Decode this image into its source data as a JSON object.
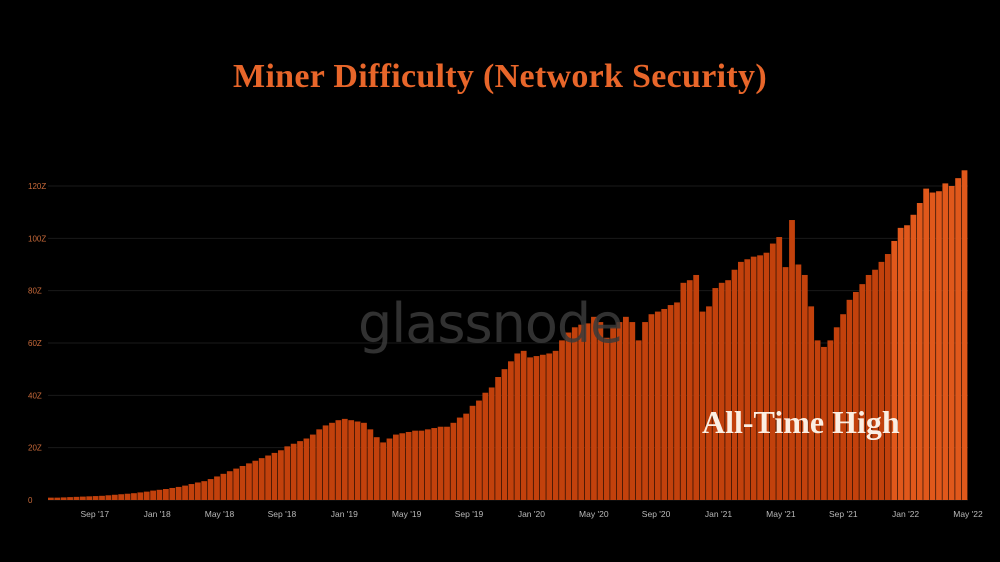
{
  "colors": {
    "bar": "#c2410c",
    "bar_highlight": "#e0581b",
    "title": "#e8662a",
    "grid": "#1a1a1a"
  },
  "watermark": "glassnode",
  "annotation": "All-Time High",
  "chart_data": {
    "type": "bar",
    "title": "Miner Difficulty (Network Security)",
    "xlabel": "",
    "ylabel": "",
    "ylim": [
      0,
      120
    ],
    "yticks": [
      {
        "value": 0,
        "label": "0"
      },
      {
        "value": 20,
        "label": "20Z"
      },
      {
        "value": 40,
        "label": "40Z"
      },
      {
        "value": 60,
        "label": "60Z"
      },
      {
        "value": 80,
        "label": "80Z"
      },
      {
        "value": 100,
        "label": "100Z"
      },
      {
        "value": 120,
        "label": "120Z"
      }
    ],
    "x_start": "2017-06",
    "x_end": "2022-05",
    "xticks": [
      {
        "date": "2017-09",
        "label": "Sep '17"
      },
      {
        "date": "2018-01",
        "label": "Jan '18"
      },
      {
        "date": "2018-05",
        "label": "May '18"
      },
      {
        "date": "2018-09",
        "label": "Sep '18"
      },
      {
        "date": "2019-01",
        "label": "Jan '19"
      },
      {
        "date": "2019-05",
        "label": "May '19"
      },
      {
        "date": "2019-09",
        "label": "Sep '19"
      },
      {
        "date": "2020-01",
        "label": "Jan '20"
      },
      {
        "date": "2020-05",
        "label": "May '20"
      },
      {
        "date": "2020-09",
        "label": "Sep '20"
      },
      {
        "date": "2021-01",
        "label": "Jan '21"
      },
      {
        "date": "2021-05",
        "label": "May '21"
      },
      {
        "date": "2021-09",
        "label": "Sep '21"
      },
      {
        "date": "2022-01",
        "label": "Jan '22"
      },
      {
        "date": "2022-05",
        "label": "May '22"
      }
    ],
    "values": [
      0.9,
      0.9,
      1.0,
      1.1,
      1.2,
      1.3,
      1.4,
      1.5,
      1.6,
      1.8,
      2.0,
      2.2,
      2.4,
      2.6,
      2.9,
      3.2,
      3.6,
      3.9,
      4.2,
      4.6,
      5.0,
      5.5,
      6.1,
      6.7,
      7.2,
      8.0,
      9.0,
      10.0,
      11.0,
      12.0,
      13.0,
      14.0,
      15.0,
      16.0,
      17.0,
      18.0,
      19.0,
      20.5,
      21.5,
      22.5,
      23.5,
      25.0,
      27.0,
      28.5,
      29.5,
      30.5,
      31.0,
      30.5,
      30.0,
      29.5,
      27.0,
      24.0,
      22.0,
      23.5,
      25.0,
      25.5,
      26.0,
      26.5,
      26.5,
      27.0,
      27.5,
      28.0,
      28.0,
      29.5,
      31.5,
      33.0,
      36.0,
      38.0,
      41.0,
      43.0,
      47.0,
      50.0,
      53.0,
      56.0,
      57.0,
      54.5,
      55.0,
      55.5,
      56.0,
      57.0,
      61.0,
      64.0,
      66.0,
      67.0,
      67.5,
      70.0,
      68.0,
      62.0,
      66.0,
      68.0,
      70.0,
      68.0,
      61.0,
      68.0,
      71.0,
      72.0,
      73.0,
      74.5,
      75.5,
      83.0,
      84.0,
      86.0,
      72.0,
      74.0,
      81.0,
      83.0,
      84.0,
      88.0,
      91.0,
      92.0,
      93.0,
      93.5,
      94.5,
      98.0,
      100.5,
      89.0,
      107.0,
      90.0,
      86.0,
      74.0,
      61.0,
      58.5,
      61.0,
      66.0,
      71.0,
      76.5,
      79.5,
      82.5,
      86.0,
      88.0,
      91.0,
      94.0,
      99.0,
      104.0,
      105.0,
      109.0,
      113.5,
      119.0,
      117.5,
      118.0,
      121.0,
      120.0,
      123.0,
      126.0
    ]
  }
}
